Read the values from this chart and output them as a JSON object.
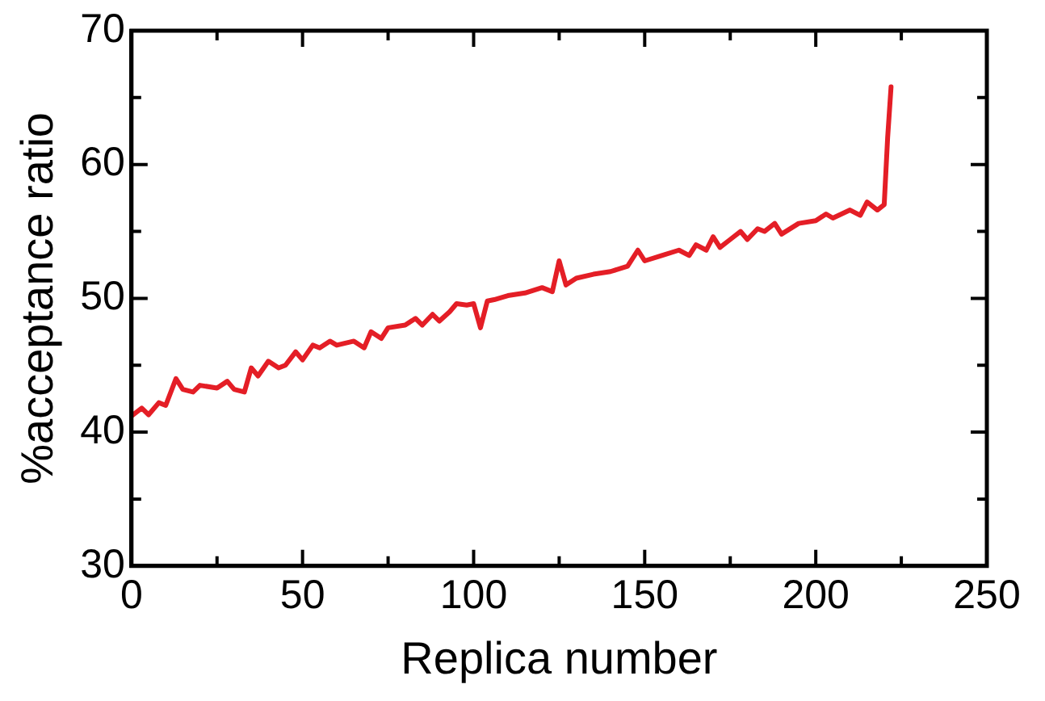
{
  "chart_data": {
    "type": "line",
    "xlabel": "Replica number",
    "ylabel": "%acceptance ratio",
    "xlim": [
      0,
      250
    ],
    "ylim": [
      30,
      70
    ],
    "xticks": [
      0,
      {
        "value": 25,
        "label": null
      },
      50,
      {
        "value": 75,
        "label": null
      },
      100,
      {
        "value": 125,
        "label": null
      },
      150,
      {
        "value": 175,
        "label": null
      },
      200,
      {
        "value": 225,
        "label": null
      },
      250
    ],
    "yticks": [
      30,
      {
        "value": 35,
        "label": null
      },
      40,
      {
        "value": 45,
        "label": null
      },
      50,
      {
        "value": 55,
        "label": null
      },
      60,
      {
        "value": 65,
        "label": null
      },
      70
    ],
    "grid": false,
    "legend": false,
    "marker": "none",
    "line_style": "solid",
    "series": [
      {
        "color": "#e41e26",
        "x": [
          0,
          3,
          5,
          8,
          10,
          13,
          15,
          18,
          20,
          25,
          28,
          30,
          33,
          35,
          37,
          40,
          43,
          45,
          48,
          50,
          53,
          55,
          58,
          60,
          65,
          68,
          70,
          73,
          75,
          80,
          83,
          85,
          88,
          90,
          93,
          95,
          98,
          100,
          102,
          104,
          106,
          110,
          115,
          120,
          123,
          125,
          127,
          130,
          135,
          140,
          145,
          148,
          150,
          155,
          160,
          163,
          165,
          168,
          170,
          172,
          175,
          178,
          180,
          183,
          185,
          188,
          190,
          195,
          200,
          203,
          205,
          210,
          213,
          215,
          218,
          220,
          221,
          222
        ],
        "values": [
          41.2,
          41.8,
          41.3,
          42.2,
          42.0,
          44.0,
          43.2,
          43.0,
          43.5,
          43.3,
          43.8,
          43.2,
          43.0,
          44.8,
          44.2,
          45.3,
          44.8,
          45.0,
          46.0,
          45.4,
          46.5,
          46.3,
          46.8,
          46.5,
          46.8,
          46.3,
          47.5,
          47.0,
          47.8,
          48.0,
          48.5,
          48.0,
          48.8,
          48.3,
          49.0,
          49.6,
          49.5,
          49.6,
          47.8,
          49.8,
          49.9,
          50.2,
          50.4,
          50.8,
          50.5,
          52.8,
          51.0,
          51.5,
          51.8,
          52.0,
          52.4,
          53.6,
          52.8,
          53.2,
          53.6,
          53.2,
          54.0,
          53.6,
          54.6,
          53.8,
          54.4,
          55.0,
          54.4,
          55.2,
          55.0,
          55.6,
          54.8,
          55.6,
          55.8,
          56.3,
          56.0,
          56.6,
          56.2,
          57.2,
          56.6,
          57.0,
          62.0,
          65.8
        ]
      }
    ]
  }
}
